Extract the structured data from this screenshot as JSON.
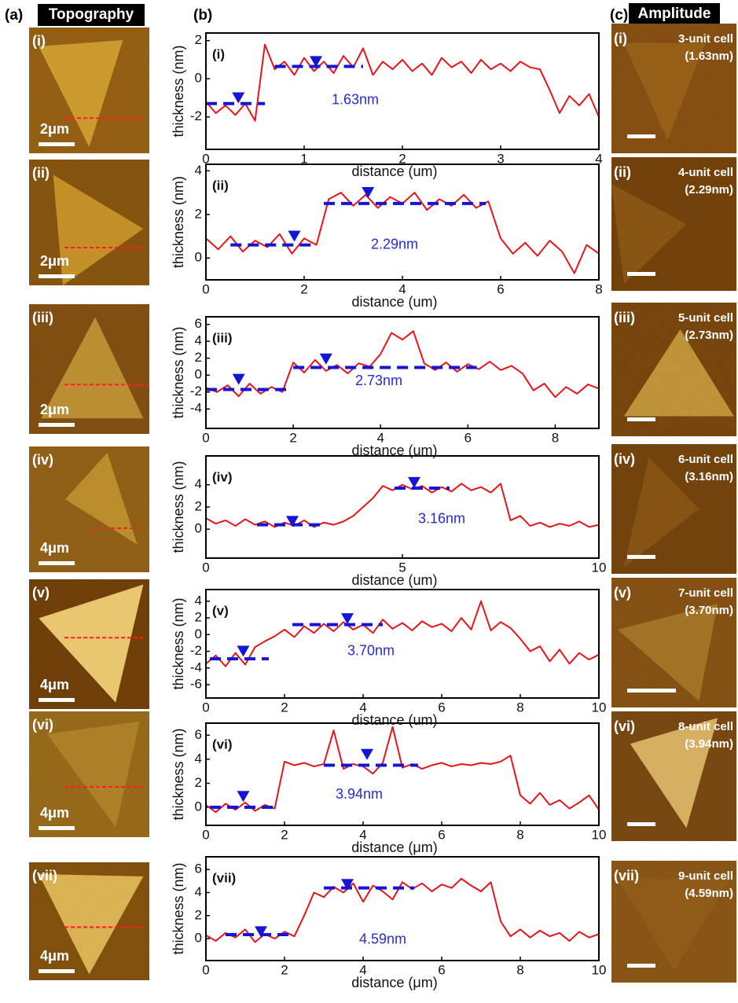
{
  "panel_a": {
    "label": "(a)",
    "title": "Topography",
    "images": [
      {
        "label": "(i)",
        "scale_bar": "2μm"
      },
      {
        "label": "(ii)",
        "scale_bar": "2μm"
      },
      {
        "label": "(iii)",
        "scale_bar": "2μm"
      },
      {
        "label": "(iv)",
        "scale_bar": "4μm"
      },
      {
        "label": "(v)",
        "scale_bar": "4μm"
      },
      {
        "label": "(vi)",
        "scale_bar": "4μm"
      },
      {
        "label": "(vii)",
        "scale_bar": "4μm"
      }
    ]
  },
  "panel_b": {
    "label": "(b)"
  },
  "panel_c": {
    "label": "(c)",
    "title": "Amplitude",
    "images": [
      {
        "label": "(i)",
        "cell": "3-unit cell",
        "thickness": "(1.63nm)"
      },
      {
        "label": "(ii)",
        "cell": "4-unit cell",
        "thickness": "(2.29nm)"
      },
      {
        "label": "(iii)",
        "cell": "5-unit cell",
        "thickness": "(2.73nm)"
      },
      {
        "label": "(iv)",
        "cell": "6-unit cell",
        "thickness": "(3.16nm)"
      },
      {
        "label": "(v)",
        "cell": "7-unit cell",
        "thickness": "(3.70nm)"
      },
      {
        "label": "(vi)",
        "cell": "8-unit cell",
        "thickness": "(3.94nm)"
      },
      {
        "label": "(vii)",
        "cell": "9-unit cell",
        "thickness": "(4.59nm)"
      }
    ]
  },
  "chart_data": [
    {
      "type": "line",
      "label": "(i)",
      "annotation": "1.63nm",
      "x_label": "distance (um)",
      "y_label": "thickness (nm)",
      "xlim": [
        0,
        4
      ],
      "ylim": [
        -3.7,
        2.4
      ],
      "xticks": [
        0,
        1,
        2,
        3,
        4
      ],
      "yticks": [
        -2,
        0,
        2
      ],
      "x": [
        0,
        0.1,
        0.2,
        0.3,
        0.4,
        0.5,
        0.6,
        0.7,
        0.8,
        0.9,
        1,
        1.1,
        1.2,
        1.3,
        1.4,
        1.5,
        1.6,
        1.7,
        1.8,
        1.9,
        2,
        2.1,
        2.2,
        2.3,
        2.4,
        2.5,
        2.6,
        2.7,
        2.8,
        2.9,
        3,
        3.1,
        3.2,
        3.3,
        3.4,
        3.5,
        3.6,
        3.7,
        3.8,
        3.9,
        4
      ],
      "values": [
        -1.2,
        -1.8,
        -1.4,
        -1.9,
        -1.3,
        -2.2,
        1.8,
        0.5,
        0.9,
        0.2,
        1.1,
        0.4,
        0.9,
        0.3,
        1.2,
        0.6,
        1.6,
        0.2,
        0.9,
        0.5,
        1.0,
        0.4,
        0.8,
        0.2,
        1.1,
        0.6,
        0.9,
        0.3,
        1.0,
        0.5,
        0.8,
        0.4,
        0.9,
        0.6,
        0.5,
        -0.6,
        -1.8,
        -0.9,
        -1.4,
        -0.8,
        -2.0
      ],
      "color": "#e8141c",
      "marker_color": "#1515d6",
      "steps": [
        {
          "x0": 0,
          "x1": 0.6,
          "y": -1.3
        },
        {
          "x0": 0.7,
          "x1": 1.6,
          "y": 0.65
        }
      ],
      "cursors": [
        {
          "x": 0.33,
          "y": -1.0
        },
        {
          "x": 1.12,
          "y": 0.9
        }
      ]
    },
    {
      "type": "line",
      "label": "(ii)",
      "annotation": "2.29nm",
      "x_label": "distance (um)",
      "y_label": "thickness (nm)",
      "xlim": [
        0,
        8
      ],
      "ylim": [
        -1,
        4.3
      ],
      "xticks": [
        0,
        2,
        4,
        6,
        8
      ],
      "yticks": [
        0,
        2,
        4
      ],
      "x": [
        0,
        0.25,
        0.5,
        0.75,
        1,
        1.25,
        1.5,
        1.75,
        2,
        2.25,
        2.5,
        2.75,
        3,
        3.25,
        3.5,
        3.75,
        4,
        4.25,
        4.5,
        4.75,
        5,
        5.25,
        5.5,
        5.75,
        6,
        6.25,
        6.5,
        6.75,
        7,
        7.25,
        7.5,
        7.75,
        8
      ],
      "values": [
        0.9,
        0.4,
        1.0,
        0.3,
        0.8,
        0.5,
        1.1,
        0.2,
        0.9,
        0.6,
        2.7,
        3.0,
        2.4,
        2.9,
        2.3,
        2.8,
        2.5,
        3.0,
        2.2,
        2.7,
        2.4,
        2.9,
        2.3,
        2.6,
        0.9,
        0.2,
        0.7,
        0.1,
        0.8,
        0.3,
        -0.7,
        0.6,
        0.2
      ],
      "color": "#e8141c",
      "marker_color": "#1515d6",
      "steps": [
        {
          "x0": 0.5,
          "x1": 2.2,
          "y": 0.6
        },
        {
          "x0": 2.4,
          "x1": 5.7,
          "y": 2.5
        }
      ],
      "cursors": [
        {
          "x": 1.8,
          "y": 1.0
        },
        {
          "x": 3.3,
          "y": 3.0
        }
      ]
    },
    {
      "type": "line",
      "label": "(iii)",
      "annotation": "2.73nm",
      "x_label": "distance (um)",
      "y_label": "thickness (nm)",
      "xlim": [
        0,
        9
      ],
      "ylim": [
        -6.3,
        6.9
      ],
      "xticks": [
        0,
        2,
        4,
        6,
        8
      ],
      "yticks": [
        -4,
        -2,
        0,
        2,
        4,
        6
      ],
      "x": [
        0,
        0.25,
        0.5,
        0.75,
        1,
        1.25,
        1.5,
        1.75,
        2,
        2.25,
        2.5,
        2.75,
        3,
        3.25,
        3.5,
        3.75,
        4,
        4.25,
        4.5,
        4.75,
        5,
        5.25,
        5.5,
        5.75,
        6,
        6.25,
        6.5,
        6.75,
        7,
        7.25,
        7.5,
        7.75,
        8,
        8.25,
        8.5,
        8.75,
        9
      ],
      "values": [
        -1.5,
        -2.0,
        -1.2,
        -2.5,
        -1.0,
        -2.2,
        -1.4,
        -2.0,
        1.5,
        0.3,
        1.8,
        0.5,
        1.2,
        0.2,
        1.4,
        1.0,
        2.5,
        5.0,
        4.2,
        5.2,
        1.4,
        0.6,
        1.5,
        0.4,
        1.3,
        0.7,
        1.6,
        0.6,
        1.1,
        0.2,
        -1.8,
        -1.0,
        -2.6,
        -1.4,
        -2.2,
        -1.1,
        -1.6
      ],
      "color": "#e8141c",
      "marker_color": "#1515d6",
      "steps": [
        {
          "x0": 0,
          "x1": 1.9,
          "y": -1.7
        },
        {
          "x0": 2,
          "x1": 6.2,
          "y": 0.9
        }
      ],
      "cursors": [
        {
          "x": 0.75,
          "y": -0.5
        },
        {
          "x": 2.75,
          "y": 1.9
        }
      ]
    },
    {
      "type": "line",
      "label": "(iv)",
      "annotation": "3.16nm",
      "x_label": "distance (um)",
      "y_label": "thickness (nm)",
      "xlim": [
        0,
        10
      ],
      "ylim": [
        -2.6,
        6.6
      ],
      "xticks": [
        0,
        5,
        10
      ],
      "yticks": [
        0,
        2,
        4
      ],
      "x": [
        0,
        0.25,
        0.5,
        0.75,
        1,
        1.25,
        1.5,
        1.75,
        2,
        2.25,
        2.5,
        2.75,
        3,
        3.25,
        3.5,
        3.75,
        4,
        4.25,
        4.5,
        4.75,
        5,
        5.25,
        5.5,
        5.75,
        6,
        6.25,
        6.5,
        6.75,
        7,
        7.25,
        7.5,
        7.75,
        8,
        8.25,
        8.5,
        8.75,
        9,
        9.25,
        9.5,
        9.75,
        10
      ],
      "values": [
        1.0,
        0.5,
        0.8,
        0.3,
        0.9,
        0.4,
        0.7,
        0.2,
        0.6,
        0.3,
        0.8,
        0.2,
        0.6,
        0.4,
        0.7,
        1.2,
        2.0,
        2.8,
        3.9,
        3.5,
        4.0,
        3.6,
        3.9,
        3.3,
        3.8,
        3.4,
        4.1,
        3.5,
        3.8,
        3.3,
        4.1,
        0.8,
        1.2,
        0.3,
        0.6,
        0.2,
        0.5,
        0.3,
        0.7,
        0.2,
        0.4
      ],
      "color": "#e8141c",
      "marker_color": "#1515d6",
      "steps": [
        {
          "x0": 1.3,
          "x1": 2.9,
          "y": 0.4
        },
        {
          "x0": 4.8,
          "x1": 6.2,
          "y": 3.7
        }
      ],
      "cursors": [
        {
          "x": 2.2,
          "y": 0.7
        },
        {
          "x": 5.3,
          "y": 4.2
        }
      ]
    },
    {
      "type": "line",
      "label": "(v)",
      "annotation": "3.70nm",
      "x_label": "distance (um)",
      "y_label": "thickness (nm)",
      "xlim": [
        0,
        10
      ],
      "ylim": [
        -7.6,
        5.4
      ],
      "xticks": [
        0,
        2,
        4,
        6,
        8,
        10
      ],
      "yticks": [
        -6,
        -4,
        -2,
        0,
        2,
        4
      ],
      "x": [
        0,
        0.25,
        0.5,
        0.75,
        1,
        1.25,
        1.5,
        1.75,
        2,
        2.25,
        2.5,
        2.75,
        3,
        3.25,
        3.5,
        3.75,
        4,
        4.25,
        4.5,
        4.75,
        5,
        5.25,
        5.5,
        5.75,
        6,
        6.25,
        6.5,
        6.75,
        7,
        7.25,
        7.5,
        7.75,
        8,
        8.25,
        8.5,
        8.75,
        9,
        9.25,
        9.5,
        9.75,
        10
      ],
      "values": [
        -3.5,
        -2.5,
        -3.8,
        -2.2,
        -3.6,
        -1.5,
        -0.8,
        -0.2,
        0.6,
        -0.3,
        1.0,
        0.2,
        1.3,
        0.4,
        1.5,
        0.6,
        1.2,
        0.2,
        1.8,
        0.7,
        1.4,
        0.5,
        1.6,
        0.9,
        1.3,
        0.4,
        2.0,
        0.6,
        4.0,
        0.5,
        1.5,
        0.8,
        -0.5,
        -2.0,
        -1.4,
        -3.2,
        -1.8,
        -3.5,
        -2.2,
        -3.0,
        -2.4
      ],
      "color": "#e8141c",
      "marker_color": "#1515d6",
      "steps": [
        {
          "x0": 0.1,
          "x1": 1.6,
          "y": -2.9
        },
        {
          "x0": 2.2,
          "x1": 4.5,
          "y": 1.2
        }
      ],
      "cursors": [
        {
          "x": 0.95,
          "y": -2.0
        },
        {
          "x": 3.6,
          "y": 1.9
        }
      ]
    },
    {
      "type": "line",
      "label": "(vi)",
      "annotation": "3.94nm",
      "x_label": "distance (μm)",
      "y_label": "thickness (nm)",
      "xlim": [
        0,
        10
      ],
      "ylim": [
        -1.5,
        7
      ],
      "xticks": [
        0,
        2,
        4,
        6,
        8,
        10
      ],
      "yticks": [
        0,
        2,
        4,
        6
      ],
      "x": [
        0,
        0.25,
        0.5,
        0.75,
        1,
        1.25,
        1.5,
        1.75,
        2,
        2.25,
        2.5,
        2.75,
        3,
        3.25,
        3.5,
        3.75,
        4,
        4.25,
        4.5,
        4.75,
        5,
        5.25,
        5.5,
        5.75,
        6,
        6.25,
        6.5,
        6.75,
        7,
        7.25,
        7.5,
        7.75,
        8,
        8.25,
        8.5,
        8.75,
        9,
        9.25,
        9.5,
        9.75,
        10
      ],
      "values": [
        0.2,
        -0.4,
        0.3,
        -0.2,
        0.4,
        -0.3,
        0.2,
        -0.1,
        3.8,
        3.5,
        3.7,
        3.4,
        3.6,
        6.4,
        3.2,
        3.6,
        3.4,
        2.8,
        3.7,
        6.7,
        3.3,
        3.6,
        3.2,
        3.5,
        3.7,
        3.4,
        3.6,
        3.5,
        3.7,
        3.6,
        3.8,
        4.3,
        1.0,
        0.3,
        1.2,
        0.2,
        0.6,
        -0.1,
        0.4,
        1.0,
        -0.2
      ],
      "color": "#e8141c",
      "marker_color": "#1515d6",
      "steps": [
        {
          "x0": 0.1,
          "x1": 1.7,
          "y": 0
        },
        {
          "x0": 3,
          "x1": 5.4,
          "y": 3.5
        }
      ],
      "cursors": [
        {
          "x": 0.95,
          "y": 0.9
        },
        {
          "x": 4.1,
          "y": 4.4
        }
      ]
    },
    {
      "type": "line",
      "label": "(vii)",
      "annotation": "4.59nm",
      "x_label": "distance (μm)",
      "y_label": "thickness (nm)",
      "xlim": [
        0,
        10
      ],
      "ylim": [
        -1.9,
        7.1
      ],
      "xticks": [
        0,
        2,
        4,
        6,
        8,
        10
      ],
      "yticks": [
        0,
        2,
        4,
        6
      ],
      "x": [
        0,
        0.25,
        0.5,
        0.75,
        1,
        1.25,
        1.5,
        1.75,
        2,
        2.25,
        2.5,
        2.75,
        3,
        3.25,
        3.5,
        3.75,
        4,
        4.25,
        4.5,
        4.75,
        5,
        5.25,
        5.5,
        5.75,
        6,
        6.25,
        6.5,
        6.75,
        7,
        7.25,
        7.5,
        7.75,
        8,
        8.25,
        8.5,
        8.75,
        9,
        9.25,
        9.5,
        9.75,
        10
      ],
      "values": [
        0.3,
        -0.2,
        0.5,
        0.1,
        0.8,
        -0.3,
        0.4,
        0.0,
        0.6,
        0.2,
        2.0,
        4.0,
        3.6,
        4.5,
        4.0,
        4.8,
        3.2,
        4.6,
        4.1,
        3.4,
        4.9,
        4.3,
        4.8,
        4.1,
        4.7,
        4.4,
        5.2,
        4.6,
        4.1,
        4.9,
        1.5,
        0.2,
        0.8,
        0.1,
        0.7,
        0.2,
        0.5,
        -0.2,
        0.6,
        0.1,
        0.4
      ],
      "color": "#e8141c",
      "marker_color": "#1515d6",
      "steps": [
        {
          "x0": 0.5,
          "x1": 2.2,
          "y": 0.35
        },
        {
          "x0": 3,
          "x1": 5.3,
          "y": 4.4
        }
      ],
      "cursors": [
        {
          "x": 1.4,
          "y": 0.6
        },
        {
          "x": 3.6,
          "y": 4.7
        }
      ]
    }
  ]
}
